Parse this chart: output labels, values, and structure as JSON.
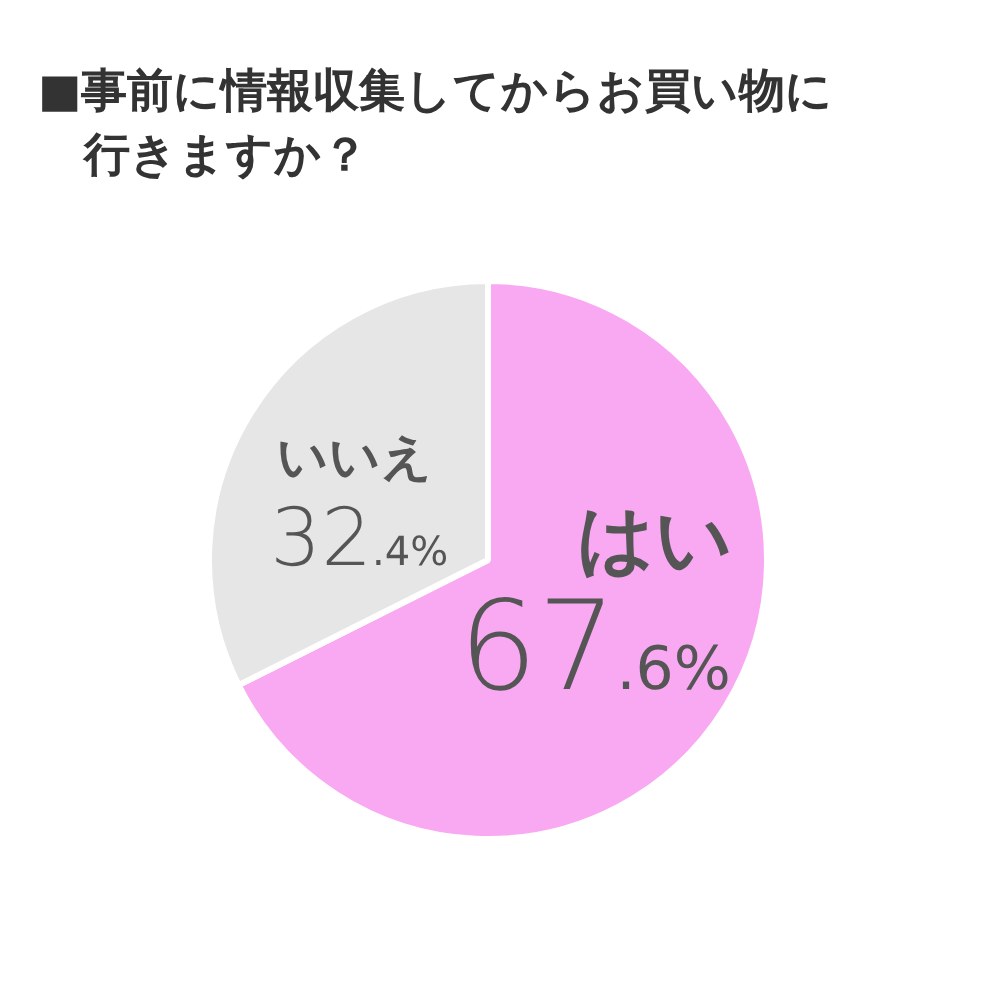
{
  "chart_data": {
    "type": "pie",
    "title": "■事前に情報収集してからお買い物に行きますか？",
    "categories": [
      "はい",
      "いいえ"
    ],
    "values": [
      67.6,
      32.4
    ],
    "colors": [
      "#f9a8f2",
      "#e6e6e6"
    ],
    "value_labels": [
      "67.6%",
      "32.4%"
    ]
  }
}
